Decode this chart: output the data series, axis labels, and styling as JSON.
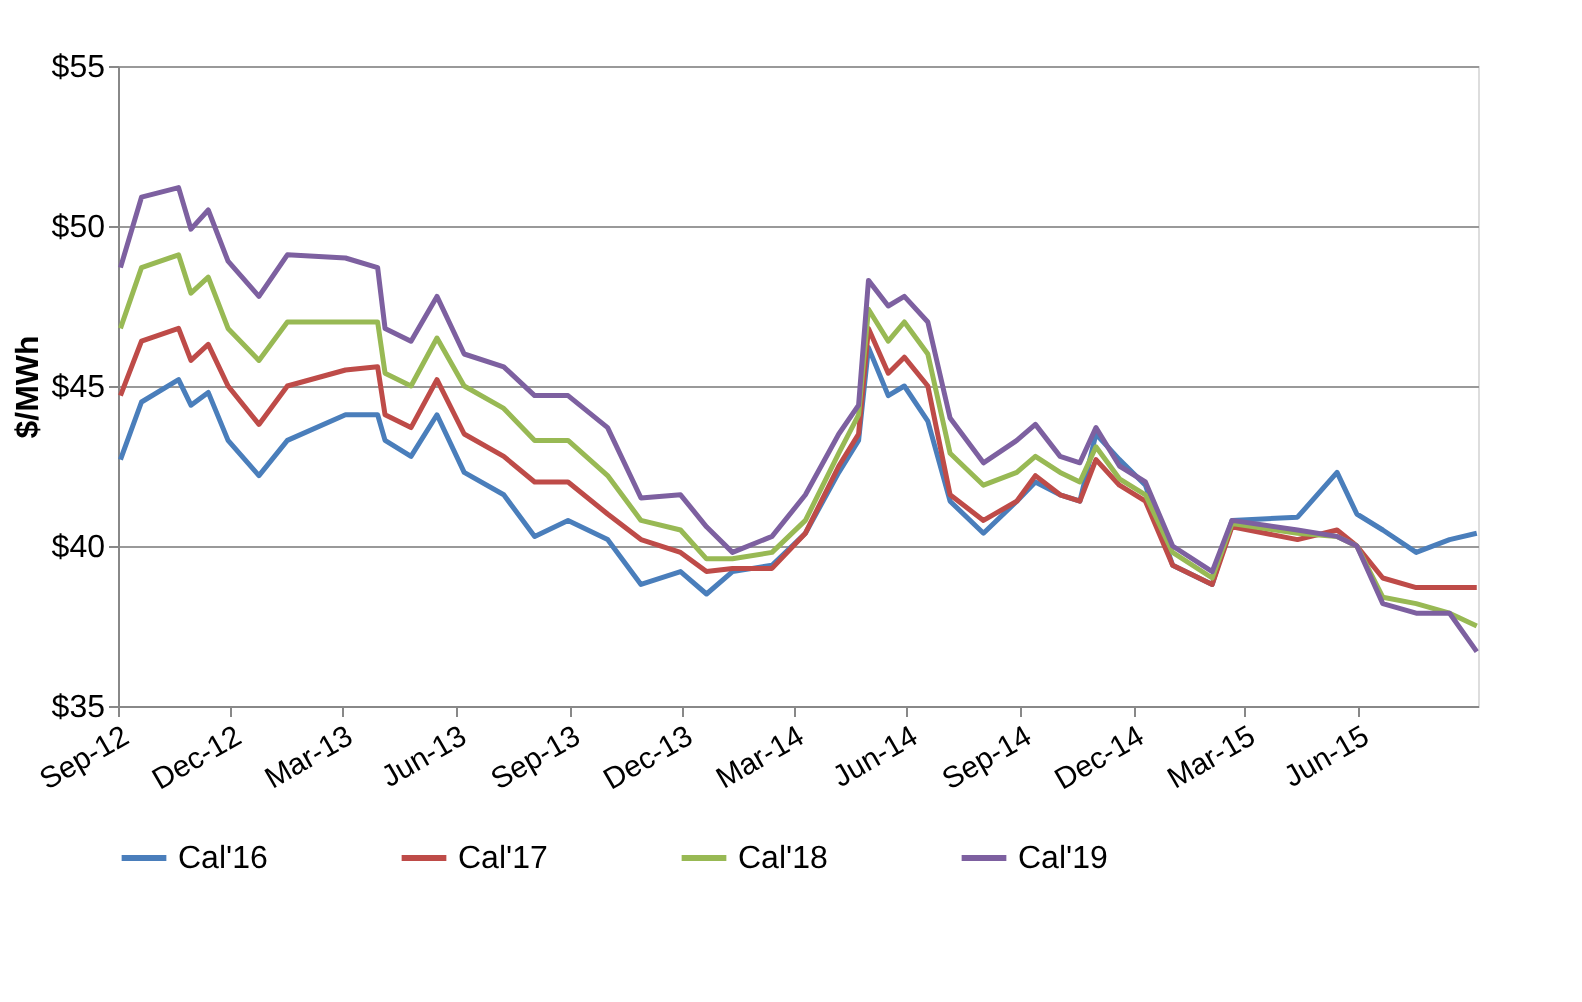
{
  "chart_data": {
    "type": "line",
    "ylabel": "$/MWh",
    "x": [
      "2012-09-03",
      "2012-09-20",
      "2012-10-20",
      "2012-10-30",
      "2012-11-13",
      "2012-11-29",
      "2012-12-24",
      "2013-01-16",
      "2013-03-04",
      "2013-03-30",
      "2013-04-05",
      "2013-04-26",
      "2013-05-17",
      "2013-06-08",
      "2013-07-10",
      "2013-08-04",
      "2013-08-31",
      "2013-10-02",
      "2013-10-29",
      "2013-11-30",
      "2013-12-21",
      "2014-01-11",
      "2014-02-12",
      "2014-03-11",
      "2014-04-07",
      "2014-04-23",
      "2014-05-01",
      "2014-05-17",
      "2014-05-30",
      "2014-06-18",
      "2014-07-06",
      "2014-08-02",
      "2014-08-29",
      "2014-09-13",
      "2014-10-03",
      "2014-10-19",
      "2014-11-01",
      "2014-11-20",
      "2014-12-11",
      "2015-01-02",
      "2015-02-03",
      "2015-02-19",
      "2015-04-13",
      "2015-05-15",
      "2015-05-31",
      "2015-06-21",
      "2015-07-18",
      "2015-08-14",
      "2015-09-05"
    ],
    "series": [
      {
        "name": "Cal'16",
        "color": "#4a7ebb",
        "values": [
          42.7,
          44.5,
          45.2,
          44.4,
          44.8,
          43.3,
          42.2,
          43.3,
          44.1,
          44.1,
          43.3,
          42.8,
          44.1,
          42.3,
          41.6,
          40.3,
          40.8,
          40.2,
          38.8,
          39.2,
          38.5,
          39.2,
          39.4,
          40.4,
          42.3,
          43.3,
          46.2,
          44.7,
          45.0,
          43.9,
          41.4,
          40.4,
          41.4,
          42.0,
          41.6,
          41.4,
          43.5,
          42.7,
          41.9,
          39.4,
          38.8,
          40.8,
          40.9,
          42.3,
          41.0,
          40.5,
          39.8,
          40.2,
          40.4
        ]
      },
      {
        "name": "Cal'17",
        "color": "#be4b48",
        "values": [
          44.7,
          46.4,
          46.8,
          45.8,
          46.3,
          45.0,
          43.8,
          45.0,
          45.5,
          45.6,
          44.1,
          43.7,
          45.2,
          43.5,
          42.8,
          42.0,
          42.0,
          41.0,
          40.2,
          39.8,
          39.2,
          39.3,
          39.3,
          40.4,
          42.5,
          43.5,
          46.8,
          45.4,
          45.9,
          45.0,
          41.6,
          40.8,
          41.4,
          42.2,
          41.6,
          41.4,
          42.7,
          41.9,
          41.4,
          39.4,
          38.8,
          40.6,
          40.2,
          40.5,
          40.0,
          39.0,
          38.7,
          38.7,
          38.7
        ]
      },
      {
        "name": "Cal'18",
        "color": "#98b954",
        "values": [
          46.8,
          48.7,
          49.1,
          47.9,
          48.4,
          46.8,
          45.8,
          47.0,
          47.0,
          47.0,
          45.4,
          45.0,
          46.5,
          45.0,
          44.3,
          43.3,
          43.3,
          42.2,
          40.8,
          40.5,
          39.6,
          39.6,
          39.8,
          40.8,
          42.9,
          44.1,
          47.4,
          46.4,
          47.0,
          46.0,
          42.9,
          41.9,
          42.3,
          42.8,
          42.3,
          42.0,
          43.1,
          42.1,
          41.6,
          39.8,
          39.0,
          40.7,
          40.4,
          40.3,
          40.0,
          38.4,
          38.2,
          37.9,
          37.5
        ]
      },
      {
        "name": "Cal'19",
        "color": "#7d60a0",
        "values": [
          48.7,
          50.9,
          51.2,
          49.9,
          50.5,
          48.9,
          47.8,
          49.1,
          49.0,
          48.7,
          46.8,
          46.4,
          47.8,
          46.0,
          45.6,
          44.7,
          44.7,
          43.7,
          41.5,
          41.6,
          40.6,
          39.8,
          40.3,
          41.6,
          43.5,
          44.4,
          48.3,
          47.5,
          47.8,
          47.0,
          44.0,
          42.6,
          43.3,
          43.8,
          42.8,
          42.6,
          43.7,
          42.5,
          42.0,
          40.0,
          39.2,
          40.8,
          40.5,
          40.3,
          40.0,
          38.2,
          37.9,
          37.9,
          36.7
        ]
      }
    ],
    "xlim": [
      "2012-09-01",
      "2015-09-06"
    ],
    "xticks": [
      {
        "value": "2012-09-01",
        "label": "Sep-12"
      },
      {
        "value": "2012-12-01",
        "label": "Dec-12"
      },
      {
        "value": "2013-03-01",
        "label": "Mar-13"
      },
      {
        "value": "2013-06-01",
        "label": "Jun-13"
      },
      {
        "value": "2013-09-01",
        "label": "Sep-13"
      },
      {
        "value": "2013-12-01",
        "label": "Dec-13"
      },
      {
        "value": "2014-03-01",
        "label": "Mar-14"
      },
      {
        "value": "2014-06-01",
        "label": "Jun-14"
      },
      {
        "value": "2014-09-01",
        "label": "Sep-14"
      },
      {
        "value": "2014-12-01",
        "label": "Dec-14"
      },
      {
        "value": "2015-03-01",
        "label": "Mar-15"
      },
      {
        "value": "2015-06-01",
        "label": "Jun-15"
      }
    ],
    "ylim": [
      35,
      55
    ],
    "yticks": [
      {
        "value": 35,
        "label": "$35"
      },
      {
        "value": 40,
        "label": "$40"
      },
      {
        "value": 45,
        "label": "$45"
      },
      {
        "value": 50,
        "label": "$50"
      },
      {
        "value": 55,
        "label": "$55"
      }
    ],
    "grid": "y",
    "legend": "bottom",
    "marker": "none",
    "line_style": "solid"
  }
}
